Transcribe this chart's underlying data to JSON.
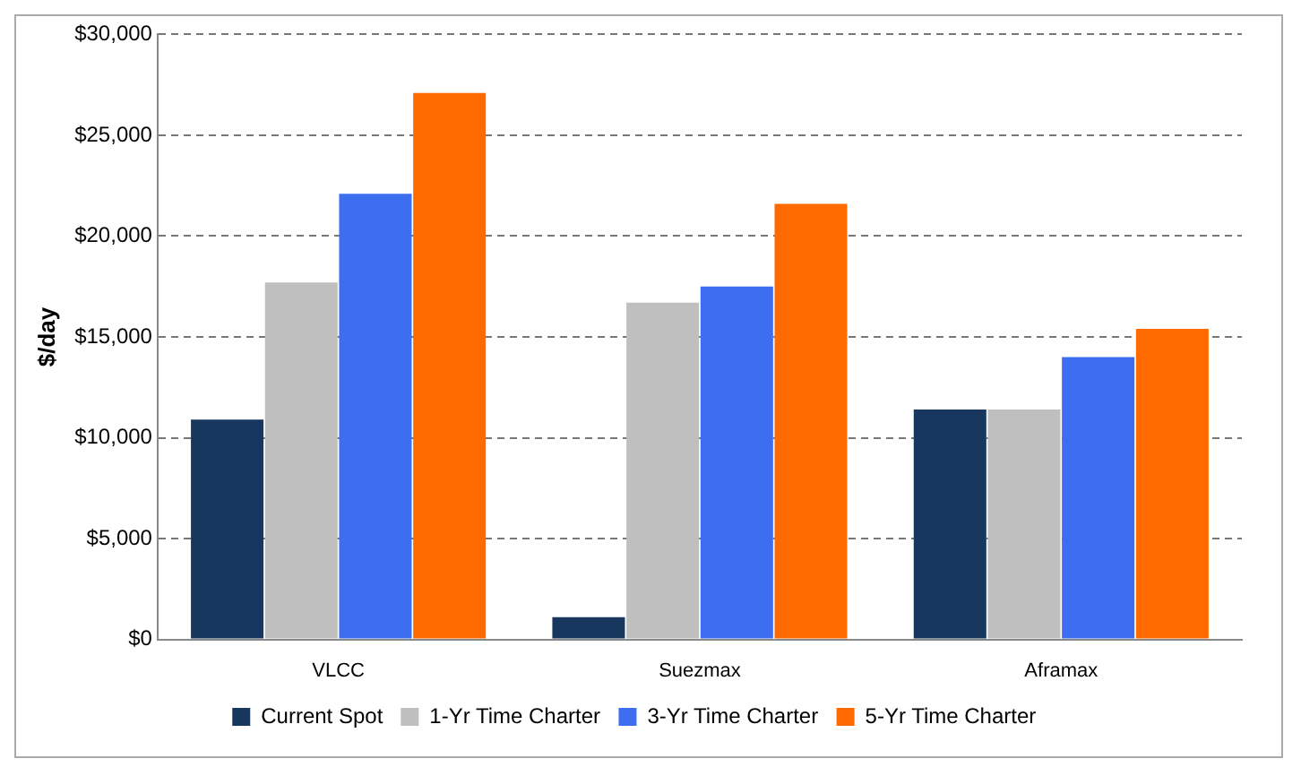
{
  "chart_data": {
    "type": "bar",
    "ylabel": "$/day",
    "categories": [
      "VLCC",
      "Suezmax",
      "Aframax"
    ],
    "series": [
      {
        "name": "Current Spot",
        "color": "#17375e",
        "values": [
          10900,
          1100,
          11400
        ]
      },
      {
        "name": "1-Yr Time Charter",
        "color": "#bfbfbf",
        "values": [
          17700,
          16700,
          11400
        ]
      },
      {
        "name": "3-Yr Time Charter",
        "color": "#3d6ef0",
        "values": [
          22100,
          17500,
          14000
        ]
      },
      {
        "name": "5-Yr Time Charter",
        "color": "#ff6a00",
        "values": [
          27100,
          21600,
          15400
        ]
      }
    ],
    "ylim": [
      0,
      30000
    ],
    "yticks": [
      {
        "value": 0,
        "label": "$0"
      },
      {
        "value": 5000,
        "label": "$5,000"
      },
      {
        "value": 10000,
        "label": "$10,000"
      },
      {
        "value": 15000,
        "label": "$15,000"
      },
      {
        "value": 20000,
        "label": "$20,000"
      },
      {
        "value": 25000,
        "label": "$25,000"
      },
      {
        "value": 30000,
        "label": "$30,000"
      }
    ],
    "grid": "y",
    "legend": "bottom"
  }
}
